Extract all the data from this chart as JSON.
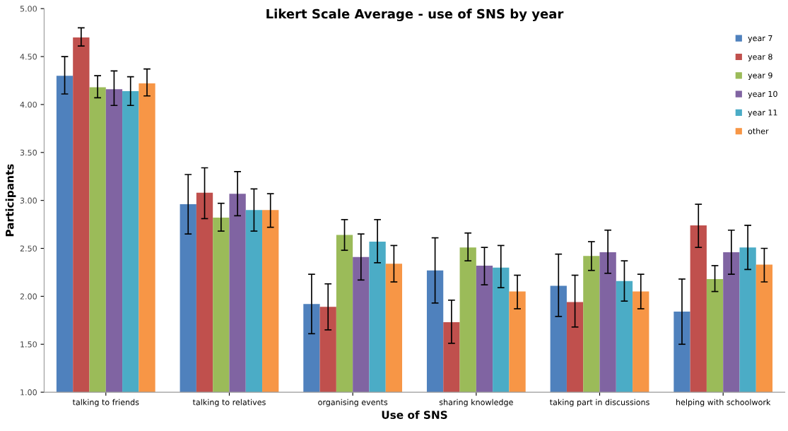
{
  "chart_data": {
    "type": "bar",
    "title": "Likert Scale Average - use of SNS by year",
    "xlabel": "Use of SNS",
    "ylabel": "Participants",
    "categories": [
      "talking to friends",
      "talking to relatives",
      "organising events",
      "sharing knowledge",
      "taking part in discussions",
      "helping with schoolwork"
    ],
    "series": [
      {
        "name": "year 7",
        "color": "#4f81bd",
        "values": [
          4.3,
          2.96,
          1.92,
          2.27,
          2.11,
          1.84
        ],
        "errors": [
          [
            4.11,
            4.5
          ],
          [
            2.65,
            3.27
          ],
          [
            1.61,
            2.23
          ],
          [
            1.93,
            2.61
          ],
          [
            1.79,
            2.44
          ],
          [
            1.5,
            2.18
          ]
        ]
      },
      {
        "name": "year 8",
        "color": "#c0504d",
        "values": [
          4.7,
          3.08,
          1.89,
          1.73,
          1.94,
          2.74
        ],
        "errors": [
          [
            4.61,
            4.8
          ],
          [
            2.81,
            3.34
          ],
          [
            1.65,
            2.13
          ],
          [
            1.51,
            1.96
          ],
          [
            1.68,
            2.22
          ],
          [
            2.51,
            2.96
          ]
        ]
      },
      {
        "name": "year 9",
        "color": "#9bbb59",
        "values": [
          4.18,
          2.82,
          2.64,
          2.51,
          2.42,
          2.18
        ],
        "errors": [
          [
            4.07,
            4.3
          ],
          [
            2.68,
            2.97
          ],
          [
            2.48,
            2.8
          ],
          [
            2.37,
            2.66
          ],
          [
            2.27,
            2.57
          ],
          [
            2.05,
            2.32
          ]
        ]
      },
      {
        "name": "year 10",
        "color": "#8064a2",
        "values": [
          4.16,
          3.07,
          2.41,
          2.32,
          2.46,
          2.46
        ],
        "errors": [
          [
            3.99,
            4.35
          ],
          [
            2.84,
            3.3
          ],
          [
            2.17,
            2.65
          ],
          [
            2.12,
            2.51
          ],
          [
            2.24,
            2.69
          ],
          [
            2.23,
            2.69
          ]
        ]
      },
      {
        "name": "year 11",
        "color": "#4bacc6",
        "values": [
          4.14,
          2.9,
          2.57,
          2.3,
          2.16,
          2.51
        ],
        "errors": [
          [
            3.99,
            4.29
          ],
          [
            2.68,
            3.12
          ],
          [
            2.35,
            2.8
          ],
          [
            2.09,
            2.53
          ],
          [
            1.95,
            2.37
          ],
          [
            2.28,
            2.74
          ]
        ]
      },
      {
        "name": "other",
        "color": "#f79646",
        "values": [
          4.22,
          2.9,
          2.34,
          2.05,
          2.05,
          2.33
        ],
        "errors": [
          [
            4.09,
            4.37
          ],
          [
            2.72,
            3.07
          ],
          [
            2.15,
            2.53
          ],
          [
            1.87,
            2.22
          ],
          [
            1.87,
            2.23
          ],
          [
            2.15,
            2.5
          ]
        ]
      }
    ],
    "ylim": [
      1.0,
      5.0
    ],
    "yticks": [
      {
        "value": 1.0,
        "label": "1.00"
      },
      {
        "value": 1.5,
        "label": "1.50"
      },
      {
        "value": 2.0,
        "label": "2.00"
      },
      {
        "value": 2.5,
        "label": "2.50"
      },
      {
        "value": 3.0,
        "label": "3.00"
      },
      {
        "value": 3.5,
        "label": "3.50"
      },
      {
        "value": 4.0,
        "label": "4.00"
      },
      {
        "value": 4.5,
        "label": "4.50"
      },
      {
        "value": 5.0,
        "label": "5.00"
      }
    ],
    "grid": false,
    "legend": "right"
  }
}
